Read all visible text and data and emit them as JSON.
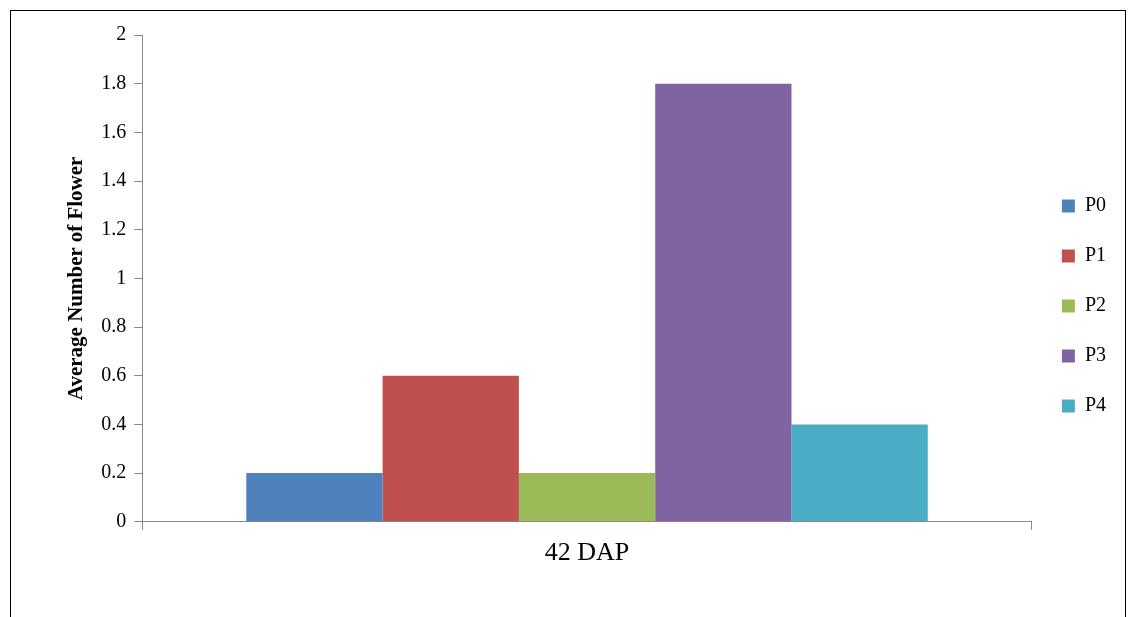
{
  "chart_data": {
    "type": "bar",
    "ylabel": "Average Number of Flower",
    "categories": [
      "42 DAP"
    ],
    "series": [
      {
        "name": "P0",
        "color": "#4f81bd",
        "values": [
          0.2
        ]
      },
      {
        "name": "P1",
        "color": "#c0504d",
        "values": [
          0.6
        ]
      },
      {
        "name": "P2",
        "color": "#9bbb59",
        "values": [
          0.2
        ]
      },
      {
        "name": "P3",
        "color": "#8064a2",
        "values": [
          1.8
        ]
      },
      {
        "name": "P4",
        "color": "#4bacc6",
        "values": [
          0.4
        ]
      }
    ],
    "ylim": [
      0,
      2
    ],
    "yticks": [
      0,
      0.2,
      0.4,
      0.6,
      0.8,
      1,
      1.2,
      1.4,
      1.6,
      1.8,
      2
    ],
    "grid": false,
    "legend": "right"
  }
}
